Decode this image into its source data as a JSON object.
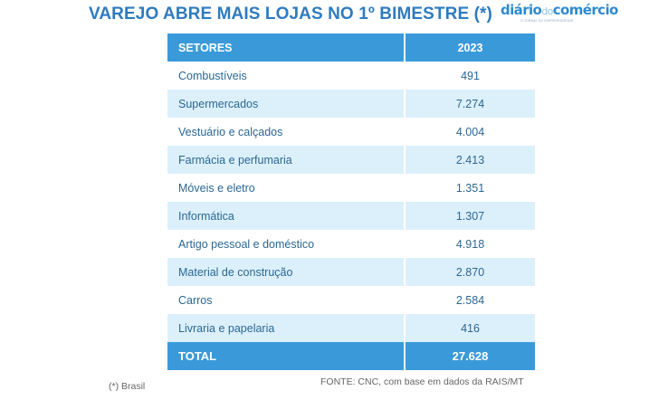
{
  "chart_data": {
    "type": "table",
    "title": "VAREJO ABRE MAIS LOJAS NO 1º BIMESTRE (*)",
    "columns": [
      "SETORES",
      "2023"
    ],
    "rows": [
      {
        "sector": "Combustíveis",
        "value": "491"
      },
      {
        "sector": "Supermercados",
        "value": "7.274"
      },
      {
        "sector": "Vestuário e calçados",
        "value": "4.004"
      },
      {
        "sector": "Farmácia e perfumaria",
        "value": "2.413"
      },
      {
        "sector": "Móveis e eletro",
        "value": "1.351"
      },
      {
        "sector": "Informática",
        "value": "1.307"
      },
      {
        "sector": "Artigo pessoal e doméstico",
        "value": "4.918"
      },
      {
        "sector": "Material de construção",
        "value": "2.870"
      },
      {
        "sector": "Carros",
        "value": "2.584"
      },
      {
        "sector": "Livraria e papelaria",
        "value": "416"
      }
    ],
    "total": {
      "label": "TOTAL",
      "value": "27.628"
    },
    "footnote": "(*) Brasil",
    "source": "FONTE: CNC, com base em dados da RAIS/MT"
  },
  "logo": {
    "word_a": "diário",
    "word_b": "do",
    "word_c": "comércio",
    "tagline": "O JORNAL DO EMPREENDEDOR"
  },
  "colors": {
    "title": "#2e7bbf",
    "header_bg": "#3a9ad9",
    "stripe": "#dcf0fb",
    "row_text": "#2a6794"
  }
}
